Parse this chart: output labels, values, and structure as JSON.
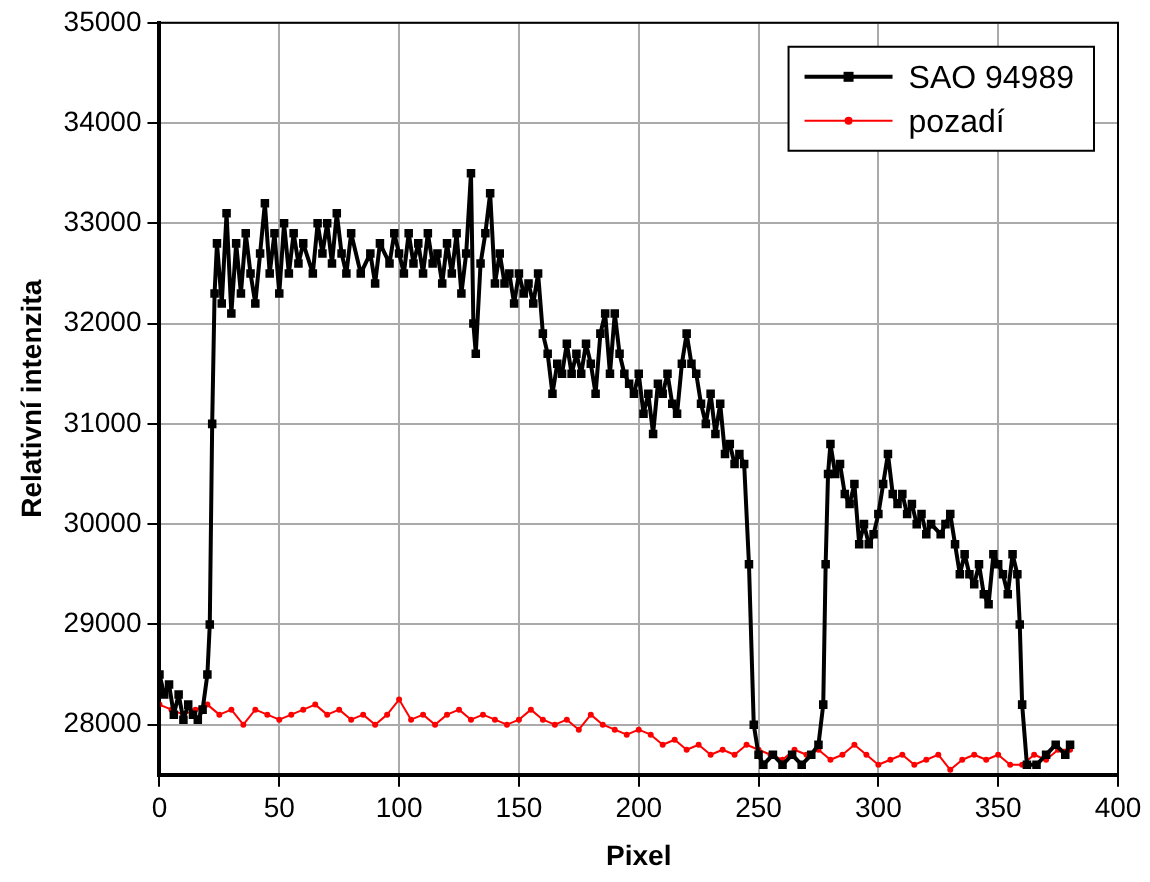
{
  "chart_data": {
    "type": "line",
    "xlabel": "Pixel",
    "ylabel": "Relativní intenzita",
    "xlim": [
      0,
      400
    ],
    "xticks": [
      0,
      50,
      100,
      150,
      200,
      250,
      300,
      350,
      400
    ],
    "ylim": [
      27500,
      35000
    ],
    "yticks": [
      28000,
      29000,
      30000,
      31000,
      32000,
      33000,
      34000,
      35000
    ],
    "grid": true,
    "legend": "top right",
    "series": [
      {
        "name": "SAO 94989",
        "color": "#000000",
        "marker": "square",
        "x": [
          0,
          2,
          4,
          6,
          8,
          10,
          12,
          14,
          16,
          18,
          20,
          21,
          22,
          23,
          24,
          26,
          28,
          30,
          32,
          34,
          36,
          38,
          40,
          42,
          44,
          46,
          48,
          50,
          52,
          54,
          56,
          58,
          60,
          64,
          66,
          68,
          70,
          72,
          74,
          76,
          78,
          80,
          84,
          88,
          90,
          92,
          96,
          98,
          100,
          102,
          104,
          106,
          108,
          110,
          112,
          114,
          116,
          118,
          120,
          122,
          124,
          126,
          128,
          130,
          131,
          132,
          134,
          136,
          138,
          140,
          142,
          144,
          146,
          148,
          150,
          152,
          154,
          156,
          158,
          160,
          162,
          164,
          166,
          168,
          170,
          172,
          174,
          176,
          178,
          180,
          182,
          184,
          186,
          188,
          190,
          192,
          194,
          196,
          198,
          200,
          202,
          204,
          206,
          208,
          210,
          212,
          214,
          216,
          218,
          220,
          222,
          224,
          226,
          228,
          230,
          232,
          234,
          236,
          238,
          240,
          242,
          244,
          246,
          248,
          250,
          252,
          256,
          260,
          264,
          268,
          272,
          275,
          277,
          278,
          279,
          280,
          282,
          284,
          286,
          288,
          290,
          292,
          294,
          296,
          298,
          300,
          302,
          304,
          306,
          308,
          310,
          312,
          314,
          316,
          318,
          320,
          322,
          326,
          328,
          330,
          332,
          334,
          336,
          338,
          340,
          342,
          344,
          346,
          348,
          350,
          352,
          354,
          356,
          358,
          359,
          360,
          362,
          366,
          370,
          374,
          378,
          380
        ],
        "values": [
          28500,
          28300,
          28400,
          28100,
          28300,
          28050,
          28200,
          28100,
          28050,
          28150,
          28500,
          29000,
          31000,
          32300,
          32800,
          32200,
          33100,
          32100,
          32800,
          32300,
          32900,
          32500,
          32200,
          32700,
          33200,
          32500,
          32900,
          32300,
          33000,
          32500,
          32900,
          32600,
          32800,
          32500,
          33000,
          32700,
          33000,
          32600,
          33100,
          32700,
          32500,
          32900,
          32500,
          32700,
          32400,
          32800,
          32600,
          32900,
          32700,
          32500,
          32900,
          32600,
          32800,
          32500,
          32900,
          32600,
          32700,
          32400,
          32800,
          32500,
          32900,
          32300,
          32700,
          33500,
          32000,
          31700,
          32600,
          32900,
          33300,
          32400,
          32700,
          32400,
          32500,
          32200,
          32500,
          32300,
          32400,
          32200,
          32500,
          31900,
          31700,
          31300,
          31600,
          31500,
          31800,
          31500,
          31700,
          31500,
          31800,
          31600,
          31300,
          31900,
          32100,
          31500,
          32100,
          31700,
          31500,
          31400,
          31300,
          31500,
          31100,
          31300,
          30900,
          31400,
          31300,
          31500,
          31200,
          31100,
          31600,
          31900,
          31600,
          31500,
          31200,
          31000,
          31300,
          30900,
          31200,
          30700,
          30800,
          30600,
          30700,
          30600,
          29600,
          28000,
          27700,
          27600,
          27700,
          27600,
          27700,
          27600,
          27700,
          27800,
          28200,
          29600,
          30500,
          30800,
          30500,
          30600,
          30300,
          30200,
          30400,
          29800,
          30000,
          29800,
          29900,
          30100,
          30400,
          30700,
          30300,
          30200,
          30300,
          30100,
          30200,
          30000,
          30100,
          29900,
          30000,
          29900,
          30000,
          30100,
          29800,
          29500,
          29700,
          29500,
          29400,
          29600,
          29300,
          29200,
          29700,
          29600,
          29500,
          29300,
          29700,
          29500,
          29000,
          28200,
          27600,
          27600,
          27700,
          27800,
          27700,
          27800
        ]
      },
      {
        "name": "pozadí",
        "color": "#ff0000",
        "marker": "circle",
        "x": [
          0,
          5,
          10,
          15,
          20,
          25,
          30,
          35,
          40,
          45,
          50,
          55,
          60,
          65,
          70,
          75,
          80,
          85,
          90,
          95,
          100,
          105,
          110,
          115,
          120,
          125,
          130,
          135,
          140,
          145,
          150,
          155,
          160,
          165,
          170,
          175,
          180,
          185,
          190,
          195,
          200,
          205,
          210,
          215,
          220,
          225,
          230,
          235,
          240,
          245,
          250,
          255,
          260,
          265,
          270,
          275,
          280,
          285,
          290,
          295,
          300,
          305,
          310,
          315,
          320,
          325,
          330,
          335,
          340,
          345,
          350,
          355,
          360,
          365,
          370,
          375,
          380
        ],
        "values": [
          28200,
          28150,
          28100,
          28150,
          28200,
          28100,
          28150,
          28000,
          28150,
          28100,
          28050,
          28100,
          28150,
          28200,
          28100,
          28150,
          28050,
          28100,
          28000,
          28100,
          28250,
          28050,
          28100,
          28000,
          28100,
          28150,
          28050,
          28100,
          28050,
          28000,
          28050,
          28150,
          28050,
          28000,
          28050,
          27950,
          28100,
          28000,
          27950,
          27900,
          27950,
          27900,
          27800,
          27850,
          27750,
          27800,
          27700,
          27750,
          27700,
          27800,
          27750,
          27700,
          27650,
          27750,
          27700,
          27750,
          27650,
          27700,
          27800,
          27700,
          27600,
          27650,
          27700,
          27600,
          27650,
          27700,
          27550,
          27650,
          27700,
          27650,
          27700,
          27600,
          27600,
          27700,
          27650,
          27750,
          27750
        ]
      }
    ]
  }
}
